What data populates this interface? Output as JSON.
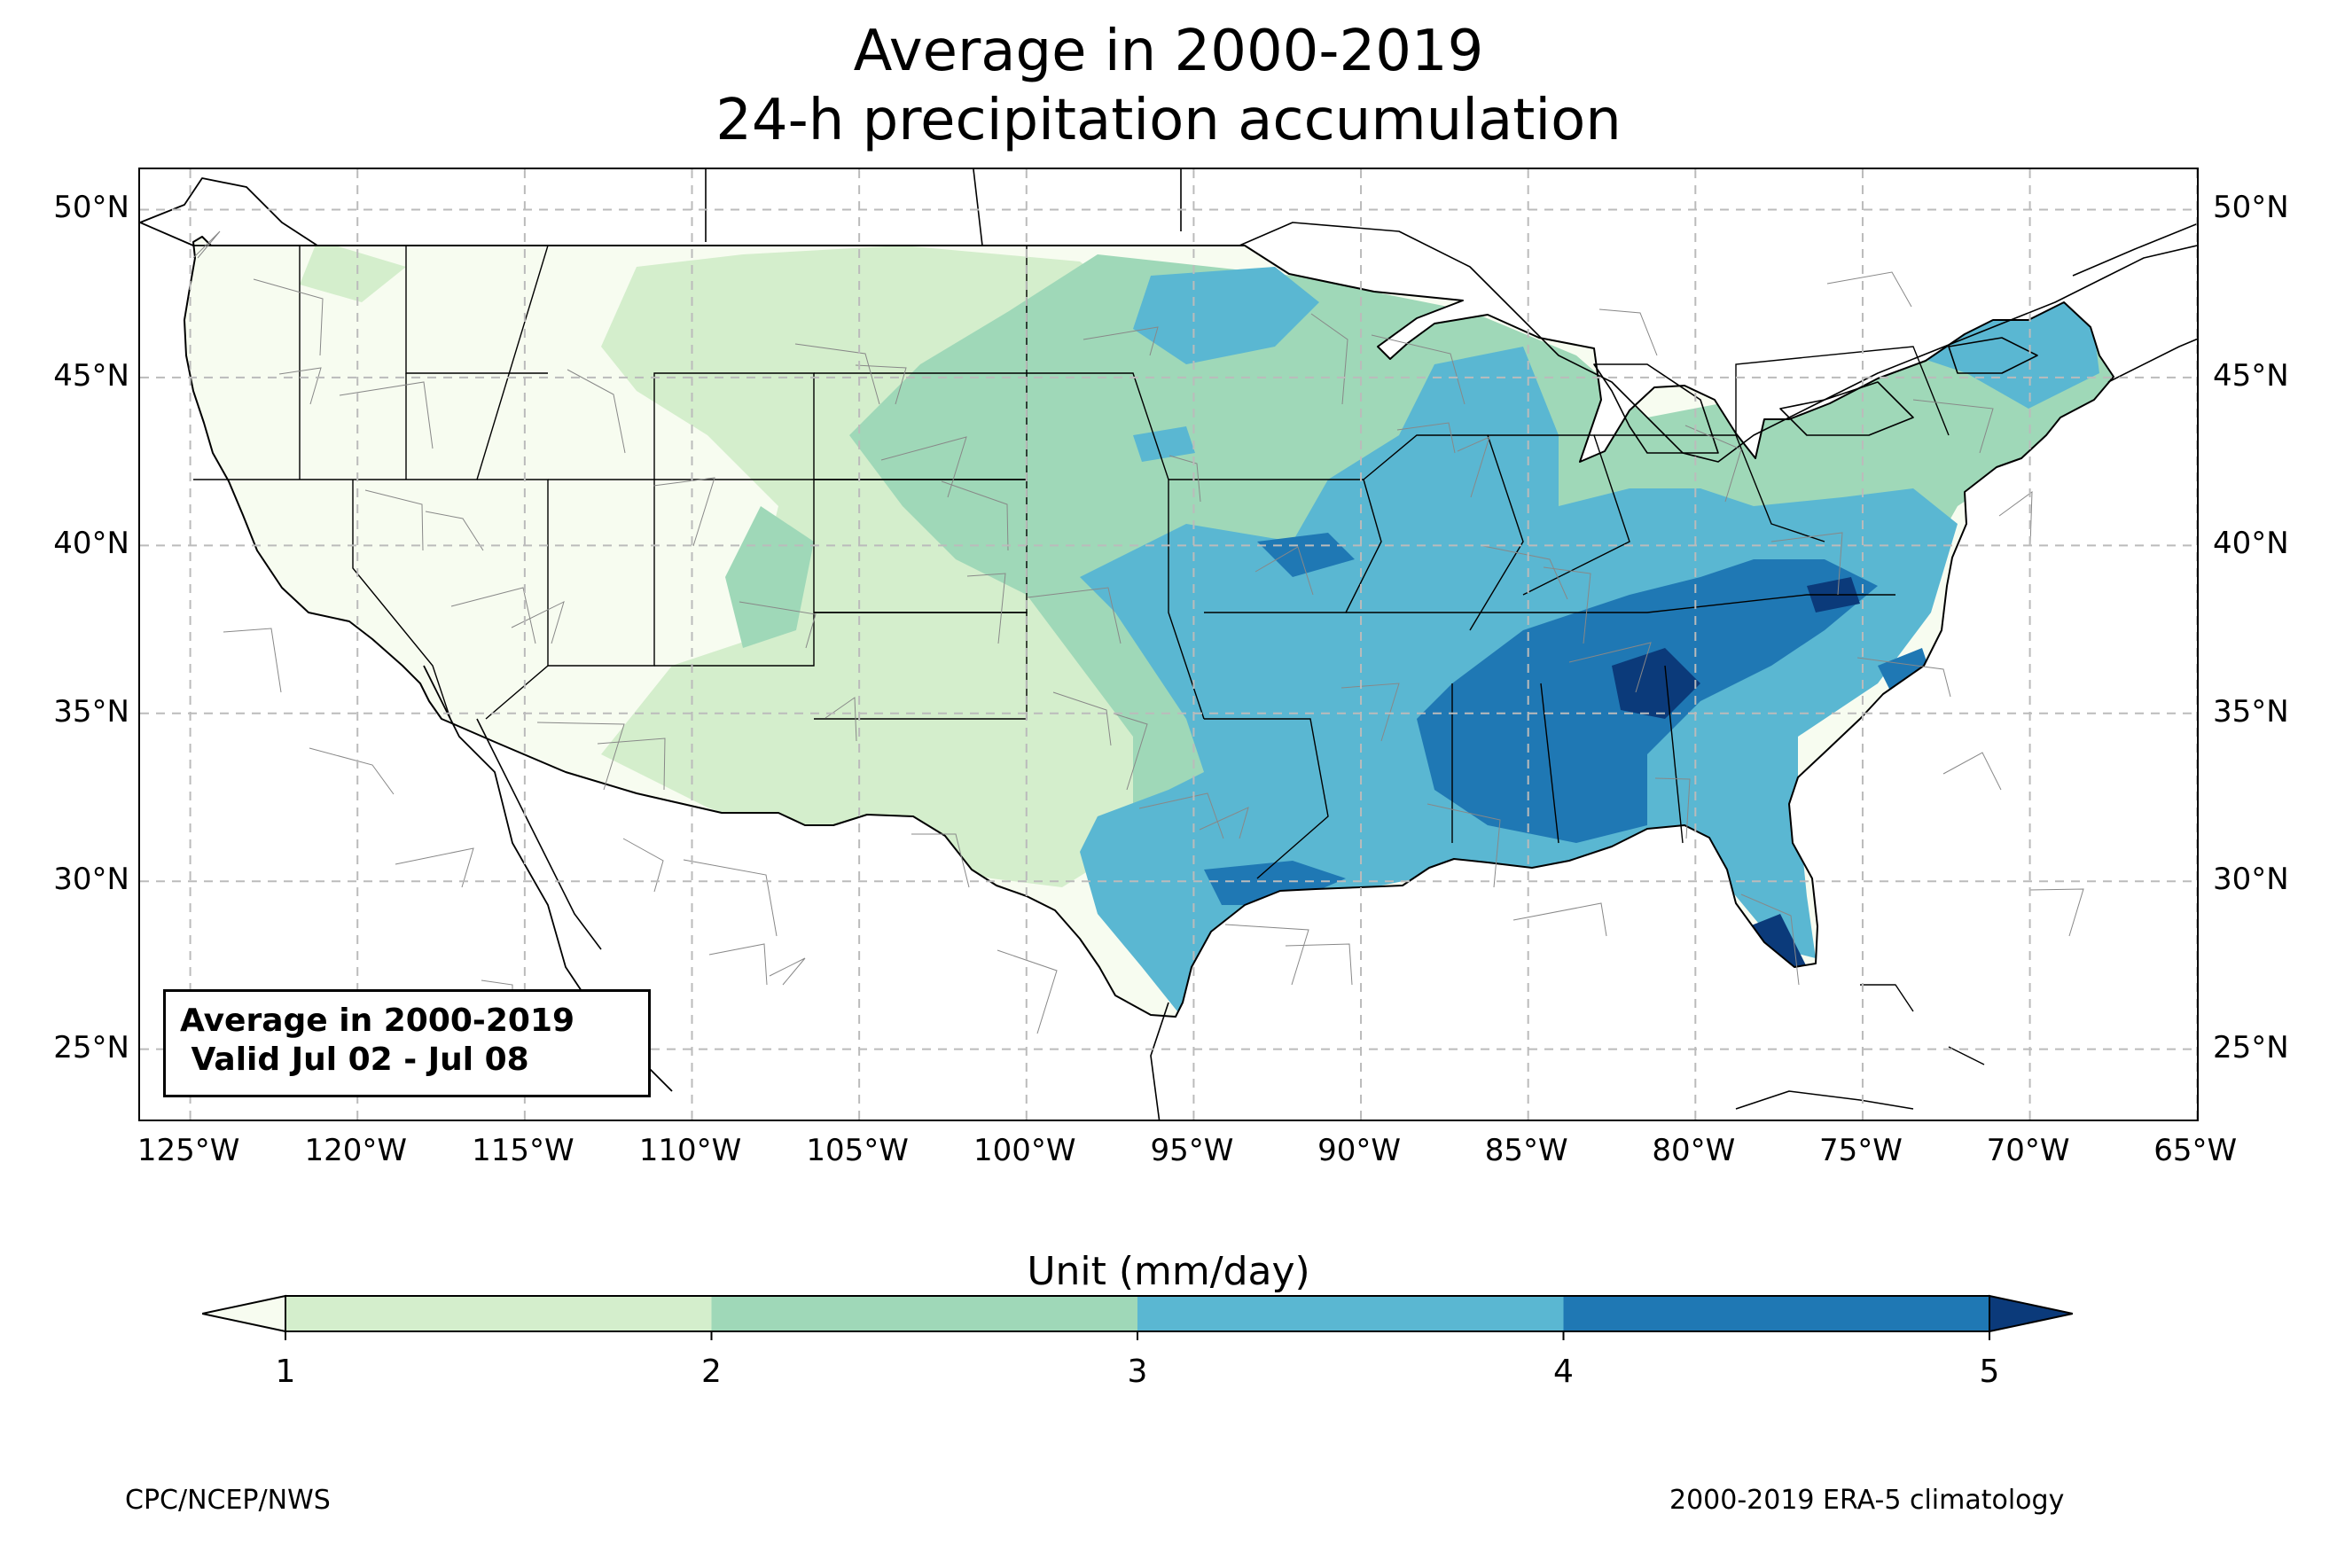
{
  "title": {
    "line1": "Average in 2000-2019",
    "line2": "24-h precipitation accumulation"
  },
  "map": {
    "projection": "lat-lon",
    "lon_range": [
      -126.5,
      -64.9
    ],
    "lat_range": [
      22.8,
      51.2
    ],
    "gridlines": "dashed",
    "lat_ticks": [
      "25°N",
      "30°N",
      "35°N",
      "40°N",
      "45°N",
      "50°N"
    ],
    "lon_ticks": [
      "125°W",
      "120°W",
      "115°W",
      "110°W",
      "105°W",
      "100°W",
      "95°W",
      "90°W",
      "85°W",
      "80°W",
      "75°W",
      "70°W",
      "65°W"
    ],
    "info_box": {
      "line1": "Average in 2000-2019",
      "line2": " Valid Jul 02 - Jul 08"
    }
  },
  "colorbar": {
    "title": "Unit (mm/day)",
    "levels": [
      "1",
      "2",
      "3",
      "4",
      "5"
    ],
    "colors": {
      "below": "#f7fcf0",
      "1-2": "#d4eecc",
      "2-3": "#9fd8b8",
      "3-4": "#5ab7d2",
      "4-5": "#1f78b4",
      "above": "#0b3a7a"
    },
    "extend": "both"
  },
  "footer": {
    "left": "CPC/NCEP/NWS",
    "right": "2000-2019 ERA-5 climatology"
  }
}
